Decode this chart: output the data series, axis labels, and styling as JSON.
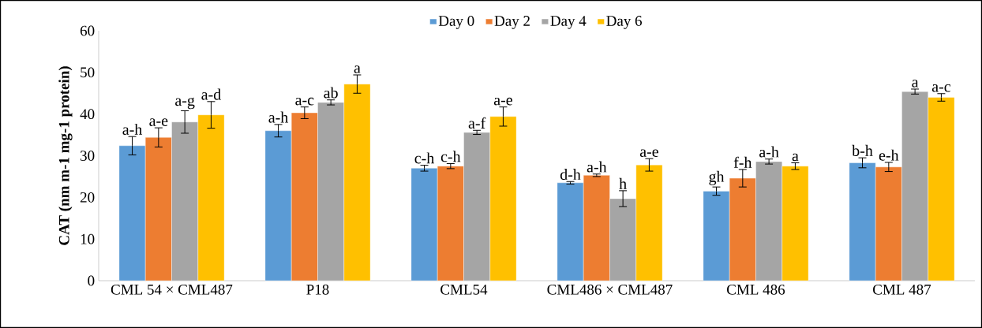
{
  "chart_data": {
    "type": "bar",
    "ylabel": "CAT (nm m-1 mg-1 protein)",
    "categories": [
      "CML 54 × CML487",
      "P18",
      "CML54",
      "CML486 × CML487",
      "CML 486",
      "CML 487"
    ],
    "series": [
      {
        "name": "Day 0",
        "color": "#5b9bd5",
        "values": [
          32.4,
          36.0,
          27.0,
          23.5,
          21.5,
          28.3
        ],
        "errors": [
          2.2,
          1.5,
          0.7,
          0.3,
          1.0,
          1.2
        ],
        "value_labels": [
          "a-h",
          "a-h",
          "c-h",
          "d-h",
          "gh",
          "b-h"
        ]
      },
      {
        "name": "Day 2",
        "color": "#ed7d31",
        "values": [
          34.4,
          40.3,
          27.5,
          25.3,
          24.6,
          27.3
        ],
        "errors": [
          2.3,
          1.4,
          0.6,
          0.3,
          2.1,
          1.1
        ],
        "value_labels": [
          "a-e",
          "a-c",
          "c-h",
          "a-h",
          "f-h",
          "e-h"
        ]
      },
      {
        "name": "Day 4",
        "color": "#a5a5a5",
        "values": [
          38.1,
          42.8,
          35.6,
          19.7,
          28.6,
          45.4
        ],
        "errors": [
          2.7,
          0.6,
          0.5,
          1.9,
          0.6,
          0.6
        ],
        "value_labels": [
          "a-g",
          "ab",
          "a-f",
          "h",
          "a-h",
          "a"
        ]
      },
      {
        "name": "Day 6",
        "color": "#ffc000",
        "values": [
          39.8,
          47.2,
          39.4,
          27.8,
          27.5,
          44.0
        ],
        "errors": [
          3.2,
          2.2,
          2.3,
          1.5,
          0.8,
          0.9
        ],
        "value_labels": [
          "a-d",
          "a",
          "a-e",
          "a-e",
          "a",
          "a-c"
        ]
      }
    ],
    "ylim": [
      0,
      60
    ],
    "yticks": [
      0,
      10,
      20,
      30,
      40,
      50,
      60
    ],
    "legend": "top"
  }
}
